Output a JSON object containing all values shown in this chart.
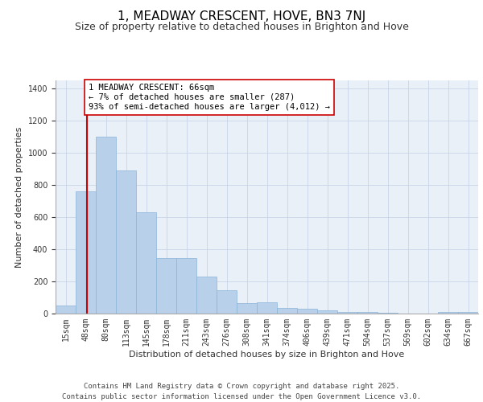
{
  "title": "1, MEADWAY CRESCENT, HOVE, BN3 7NJ",
  "subtitle": "Size of property relative to detached houses in Brighton and Hove",
  "xlabel": "Distribution of detached houses by size in Brighton and Hove",
  "ylabel": "Number of detached properties",
  "categories": [
    "15sqm",
    "48sqm",
    "80sqm",
    "113sqm",
    "145sqm",
    "178sqm",
    "211sqm",
    "243sqm",
    "276sqm",
    "308sqm",
    "341sqm",
    "374sqm",
    "406sqm",
    "439sqm",
    "471sqm",
    "504sqm",
    "537sqm",
    "569sqm",
    "602sqm",
    "634sqm",
    "667sqm"
  ],
  "values": [
    50,
    760,
    1100,
    890,
    630,
    345,
    345,
    230,
    145,
    65,
    70,
    35,
    30,
    20,
    12,
    10,
    5,
    2,
    0,
    8,
    8
  ],
  "bar_color": "#b8d0ea",
  "bar_edge_color": "#8ab4d8",
  "vline_color": "#cc0000",
  "vline_position": 0.55,
  "annotation_text": "1 MEADWAY CRESCENT: 66sqm\n← 7% of detached houses are smaller (287)\n93% of semi-detached houses are larger (4,012) →",
  "annotation_box_facecolor": "#ffffff",
  "annotation_box_edgecolor": "#cc0000",
  "ylim": [
    0,
    1450
  ],
  "yticks": [
    0,
    200,
    400,
    600,
    800,
    1000,
    1200,
    1400
  ],
  "bg_color": "#eaf0f8",
  "grid_color": "#c8d4e8",
  "footer_line1": "Contains HM Land Registry data © Crown copyright and database right 2025.",
  "footer_line2": "Contains public sector information licensed under the Open Government Licence v3.0.",
  "title_fontsize": 11,
  "subtitle_fontsize": 9,
  "annotation_fontsize": 7.5,
  "footer_fontsize": 6.5,
  "axis_label_fontsize": 8,
  "ylabel_fontsize": 8,
  "tick_fontsize": 7
}
